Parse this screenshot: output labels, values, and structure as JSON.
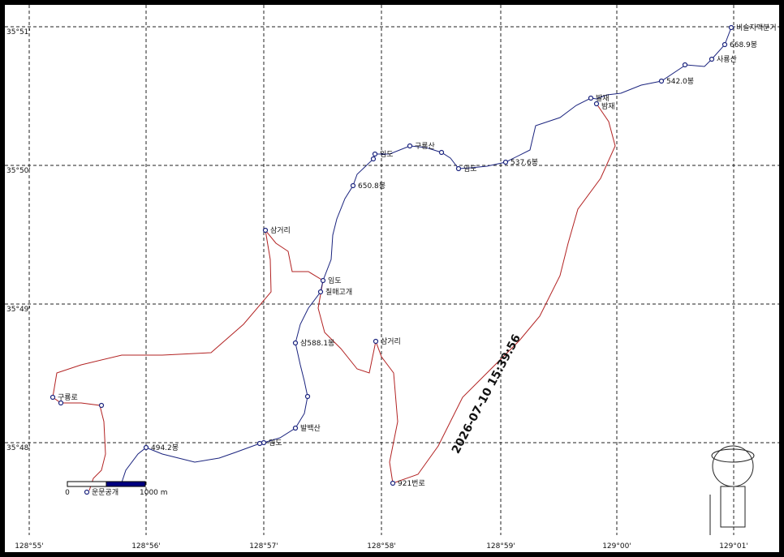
{
  "grid": {
    "lat_labels": [
      "35°51'",
      "35°50'",
      "35°49'",
      "35°48'"
    ],
    "lon_labels": [
      "128°55'",
      "128°56'",
      "128°57'",
      "128°58'",
      "128°59'",
      "129°00'",
      "129°01'"
    ]
  },
  "waypoints": [
    "비슬지맥분기",
    "668.9봉",
    "사룡산",
    "542.0봉",
    "발재",
    "밤재",
    "537.6봉",
    "임도",
    "구룡산",
    "임도",
    "650.8봉",
    "삼거리",
    "임도",
    "칠매고개",
    "삼588.1봉",
    "삼거리",
    "발백산",
    "임도",
    "494.2봉",
    "구룡로",
    "921번로",
    "운문공개"
  ],
  "scale": {
    "start": "0",
    "end": "1000 m"
  },
  "timestamp": "2026-07-10 15:39:56"
}
